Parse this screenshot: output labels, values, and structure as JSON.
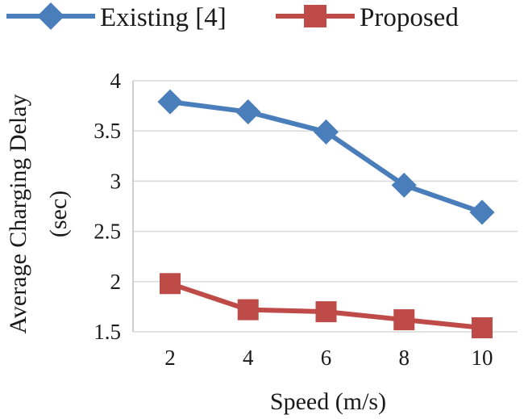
{
  "chart_data": {
    "type": "line",
    "title": "",
    "xlabel": "Speed (m/s)",
    "ylabel_lines": [
      "Average Charging Delay",
      "(sec)"
    ],
    "x": [
      2,
      4,
      6,
      8,
      10
    ],
    "x_tick_labels": [
      "2",
      "4",
      "6",
      "8",
      "10"
    ],
    "ylim": [
      1.5,
      4
    ],
    "y_ticks": [
      1.5,
      2,
      2.5,
      3,
      3.5,
      4
    ],
    "y_tick_labels": [
      "1.5",
      "2",
      "2.5",
      "3",
      "3.5",
      "4"
    ],
    "grid": "horizontal",
    "legend_position": "top",
    "series": [
      {
        "name": "Existing [4]",
        "marker": "diamond",
        "color": "#4a7ebb",
        "values": [
          3.79,
          3.69,
          3.49,
          2.96,
          2.69
        ]
      },
      {
        "name": "Proposed",
        "marker": "square",
        "color": "#be4b48",
        "values": [
          1.98,
          1.72,
          1.7,
          1.62,
          1.54
        ]
      }
    ]
  }
}
